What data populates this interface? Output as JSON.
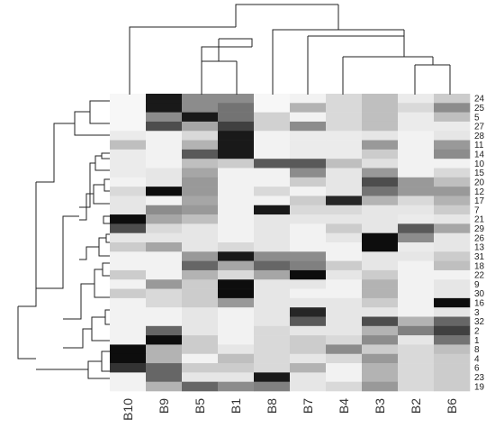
{
  "chart_data": {
    "type": "heatmap",
    "title": "",
    "xlabel": "",
    "ylabel": "",
    "colormap": "white-to-black",
    "colors": {
      "low": "#ffffff",
      "high": "#000000"
    },
    "columns": [
      "B10",
      "B9",
      "B5",
      "B1",
      "B8",
      "B7",
      "B4",
      "B3",
      "B2",
      "B6"
    ],
    "rows": [
      "24",
      "25",
      "5",
      "27",
      "28",
      "11",
      "14",
      "10",
      "15",
      "20",
      "12",
      "17",
      "7",
      "21",
      "29",
      "26",
      "13",
      "31",
      "18",
      "22",
      "9",
      "30",
      "16",
      "3",
      "32",
      "2",
      "1",
      "8",
      "4",
      "6",
      "23",
      "19"
    ],
    "values": [
      [
        0.03,
        0.9,
        0.45,
        0.45,
        0.03,
        0.05,
        0.15,
        0.25,
        0.08,
        0.2
      ],
      [
        0.03,
        0.9,
        0.45,
        0.55,
        0.03,
        0.3,
        0.15,
        0.25,
        0.15,
        0.45
      ],
      [
        0.03,
        0.45,
        0.9,
        0.55,
        0.18,
        0.05,
        0.15,
        0.25,
        0.08,
        0.25
      ],
      [
        0.03,
        0.7,
        0.35,
        0.75,
        0.18,
        0.45,
        0.15,
        0.25,
        0.08,
        0.08
      ],
      [
        0.08,
        0.05,
        0.15,
        0.9,
        0.05,
        0.08,
        0.08,
        0.1,
        0.05,
        0.1
      ],
      [
        0.25,
        0.05,
        0.3,
        0.9,
        0.05,
        0.08,
        0.08,
        0.4,
        0.05,
        0.4
      ],
      [
        0.08,
        0.05,
        0.65,
        0.9,
        0.05,
        0.08,
        0.08,
        0.2,
        0.05,
        0.45
      ],
      [
        0.08,
        0.05,
        0.25,
        0.2,
        0.65,
        0.65,
        0.25,
        0.12,
        0.05,
        0.05
      ],
      [
        0.08,
        0.1,
        0.35,
        0.05,
        0.05,
        0.45,
        0.1,
        0.4,
        0.05,
        0.15
      ],
      [
        0.05,
        0.1,
        0.4,
        0.05,
        0.05,
        0.2,
        0.1,
        0.7,
        0.4,
        0.25
      ],
      [
        0.15,
        0.95,
        0.4,
        0.05,
        0.15,
        0.05,
        0.1,
        0.55,
        0.4,
        0.4
      ],
      [
        0.1,
        0.05,
        0.35,
        0.05,
        0.05,
        0.2,
        0.85,
        0.3,
        0.15,
        0.3
      ],
      [
        0.1,
        0.45,
        0.4,
        0.05,
        0.9,
        0.15,
        0.15,
        0.1,
        0.1,
        0.2
      ],
      [
        0.95,
        0.35,
        0.25,
        0.05,
        0.1,
        0.1,
        0.1,
        0.1,
        0.08,
        0.1
      ],
      [
        0.7,
        0.15,
        0.1,
        0.05,
        0.1,
        0.05,
        0.2,
        0.1,
        0.65,
        0.35
      ],
      [
        0.1,
        0.1,
        0.1,
        0.05,
        0.1,
        0.05,
        0.1,
        0.95,
        0.45,
        0.1
      ],
      [
        0.2,
        0.35,
        0.1,
        0.15,
        0.1,
        0.05,
        0.05,
        0.95,
        0.08,
        0.1
      ],
      [
        0.05,
        0.05,
        0.4,
        0.9,
        0.45,
        0.45,
        0.05,
        0.1,
        0.1,
        0.2
      ],
      [
        0.05,
        0.05,
        0.6,
        0.35,
        0.6,
        0.5,
        0.2,
        0.1,
        0.05,
        0.25
      ],
      [
        0.2,
        0.05,
        0.3,
        0.15,
        0.35,
        0.95,
        0.1,
        0.2,
        0.05,
        0.05
      ],
      [
        0.05,
        0.4,
        0.2,
        0.95,
        0.1,
        0.1,
        0.05,
        0.3,
        0.05,
        0.1
      ],
      [
        0.2,
        0.15,
        0.2,
        0.95,
        0.1,
        0.05,
        0.05,
        0.3,
        0.05,
        0.1
      ],
      [
        0.05,
        0.15,
        0.2,
        0.4,
        0.1,
        0.1,
        0.1,
        0.2,
        0.05,
        0.95
      ],
      [
        0.05,
        0.05,
        0.1,
        0.05,
        0.1,
        0.85,
        0.1,
        0.1,
        0.05,
        0.1
      ],
      [
        0.05,
        0.05,
        0.1,
        0.05,
        0.1,
        0.65,
        0.1,
        0.7,
        0.3,
        0.6
      ],
      [
        0.05,
        0.6,
        0.1,
        0.05,
        0.15,
        0.1,
        0.1,
        0.3,
        0.5,
        0.75
      ],
      [
        0.05,
        0.95,
        0.2,
        0.05,
        0.15,
        0.2,
        0.15,
        0.45,
        0.1,
        0.55
      ],
      [
        0.95,
        0.3,
        0.2,
        0.1,
        0.15,
        0.2,
        0.45,
        0.2,
        0.15,
        0.25
      ],
      [
        0.95,
        0.3,
        0.05,
        0.25,
        0.15,
        0.1,
        0.15,
        0.4,
        0.15,
        0.2
      ],
      [
        0.8,
        0.6,
        0.2,
        0.2,
        0.15,
        0.3,
        0.05,
        0.3,
        0.15,
        0.2
      ],
      [
        0.05,
        0.6,
        0.1,
        0.1,
        0.9,
        0.1,
        0.05,
        0.3,
        0.15,
        0.2
      ],
      [
        0.05,
        0.3,
        0.6,
        0.45,
        0.5,
        0.1,
        0.15,
        0.4,
        0.15,
        0.2
      ]
    ]
  }
}
